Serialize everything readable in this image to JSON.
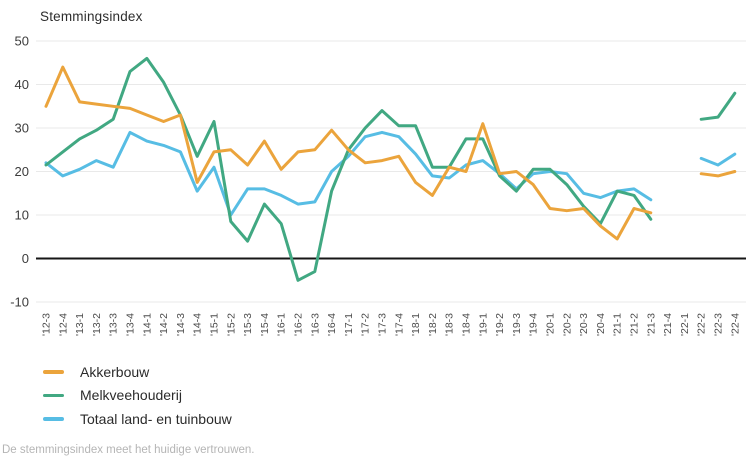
{
  "chart_data": {
    "type": "line",
    "title": "Stemmingsindex",
    "xlabel": "",
    "ylabel": "",
    "ylim": [
      -10,
      50
    ],
    "yticks": [
      50,
      40,
      30,
      20,
      10,
      0,
      -10
    ],
    "grid": "horizontal",
    "zero_line": true,
    "legend_position": "bottom-left",
    "gap_quarters": [
      "'21-4",
      "'22-1"
    ],
    "x_labels": [
      "'12-3",
      "'12-4",
      "'13-1",
      "'13-2",
      "'13-3",
      "'13-4",
      "'14-1",
      "'14-2",
      "'14-3",
      "'14-4",
      "'15-1",
      "'15-2",
      "'15-3",
      "'15-4",
      "'16-1",
      "'16-2",
      "'16-3",
      "'16-4",
      "'17-1",
      "'17-2",
      "'17-3",
      "'17-4",
      "'18-1",
      "'18-2",
      "'18-3",
      "'18-4",
      "'19-1",
      "'19-2",
      "'19-3",
      "'19-4",
      "'20-1",
      "'20-2",
      "'20-3",
      "'20-4",
      "'21-1",
      "'21-2",
      "'21-3",
      "'21-4",
      "'22-1",
      "'22-2",
      "'22-3",
      "'22-4"
    ],
    "series": [
      {
        "name": "Akkerbouw",
        "color": "#EBA43C",
        "values": [
          35,
          44,
          36,
          35.5,
          35,
          34.5,
          33,
          31.5,
          33,
          17.5,
          24.5,
          25,
          21.5,
          27,
          20.5,
          24.5,
          25,
          29.5,
          25,
          22,
          22.5,
          23.5,
          17.5,
          14.5,
          21,
          20,
          31,
          19.5,
          20,
          17,
          11.5,
          11,
          11.5,
          7.5,
          4.5,
          11.5,
          10.5,
          null,
          null,
          19.5,
          19,
          20
        ]
      },
      {
        "name": "Melkveehouderij",
        "color": "#41A882",
        "values": [
          21.5,
          24.5,
          27.5,
          29.5,
          32,
          43,
          46,
          40.5,
          33,
          23.5,
          31.5,
          8.5,
          4,
          12.5,
          8,
          -5,
          -3,
          15.5,
          25,
          30,
          34,
          30.5,
          30.5,
          21,
          21,
          27.5,
          27.5,
          19,
          15.5,
          20.5,
          20.5,
          17,
          12,
          8,
          15.5,
          14.5,
          9,
          null,
          null,
          32,
          32.5,
          38
        ]
      },
      {
        "name": "Totaal land- en tuinbouw",
        "color": "#57BDE4",
        "values": [
          22,
          19,
          20.5,
          22.5,
          21,
          29,
          27,
          26,
          24.5,
          15.5,
          21,
          10,
          16,
          16,
          14.5,
          12.5,
          13,
          20,
          23.5,
          28,
          29,
          28,
          24,
          19,
          18.5,
          21.5,
          22.5,
          19.5,
          16,
          19.5,
          20,
          19.5,
          15,
          14,
          15.5,
          16,
          13.5,
          null,
          null,
          23,
          21.5,
          24
        ]
      }
    ]
  },
  "footer": {
    "text": "De stemmingsindex meet het huidige vertrouwen."
  }
}
